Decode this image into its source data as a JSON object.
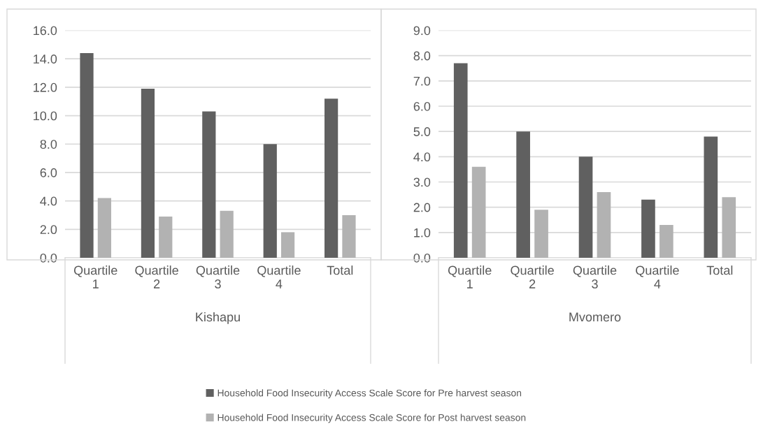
{
  "chart_data": [
    {
      "type": "bar",
      "xlabel": "Kishapu",
      "categories": [
        "Quartile 1",
        "Quartile 2",
        "Quartile 3",
        "Quartile 4",
        "Total"
      ],
      "ylim": [
        0,
        16
      ],
      "yticks": [
        {
          "value": 0,
          "label": "0.0"
        },
        {
          "value": 2,
          "label": "2.0"
        },
        {
          "value": 4,
          "label": "4.0"
        },
        {
          "value": 6,
          "label": "6.0"
        },
        {
          "value": 8,
          "label": "8.0"
        },
        {
          "value": 10,
          "label": "10.0"
        },
        {
          "value": 12,
          "label": "12.0"
        },
        {
          "value": 14,
          "label": "14.0"
        },
        {
          "value": 16,
          "label": "16.0"
        }
      ],
      "grid": "y",
      "legend": "bottom",
      "series": [
        {
          "name": "Household Food Insecurity Access Scale Score for Pre harvest season",
          "color": "#606060",
          "values": [
            14.4,
            11.9,
            10.3,
            8.0,
            11.2
          ]
        },
        {
          "name": "Household Food Insecurity Access Scale Score for Post harvest season",
          "color": "#b2b2b2",
          "values": [
            4.2,
            2.9,
            3.3,
            1.8,
            3.0
          ]
        }
      ]
    },
    {
      "type": "bar",
      "xlabel": "Mvomero",
      "categories": [
        "Quartile 1",
        "Quartile 2",
        "Quartile 3",
        "Quartile 4",
        "Total"
      ],
      "ylim": [
        0,
        9
      ],
      "yticks": [
        {
          "value": 0,
          "label": "0.0"
        },
        {
          "value": 1,
          "label": "1.0"
        },
        {
          "value": 2,
          "label": "2.0"
        },
        {
          "value": 3,
          "label": "3.0"
        },
        {
          "value": 4,
          "label": "4.0"
        },
        {
          "value": 5,
          "label": "5.0"
        },
        {
          "value": 6,
          "label": "6.0"
        },
        {
          "value": 7,
          "label": "7.0"
        },
        {
          "value": 8,
          "label": "8.0"
        },
        {
          "value": 9,
          "label": "9.0"
        }
      ],
      "grid": "y",
      "series": [
        {
          "color": "#606060",
          "values": [
            7.7,
            5.0,
            4.0,
            2.3,
            4.8
          ]
        },
        {
          "color": "#b2b2b2",
          "values": [
            3.6,
            1.9,
            2.6,
            1.3,
            2.4
          ]
        }
      ]
    }
  ]
}
